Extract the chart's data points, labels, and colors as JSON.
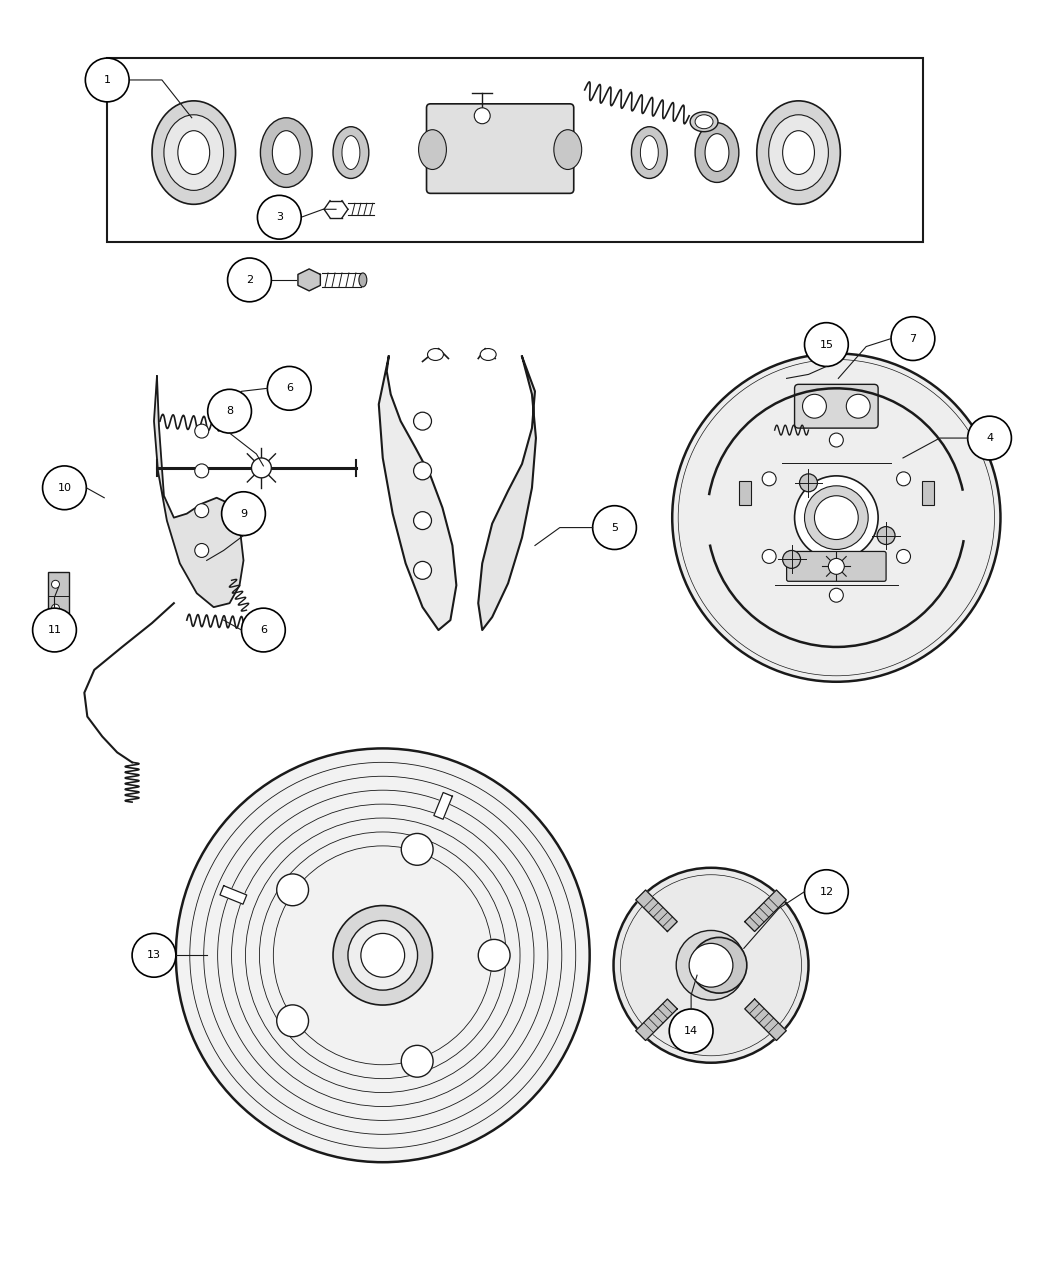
{
  "bg_color": "#ffffff",
  "line_color": "#1a1a1a",
  "callout_color": "#000000",
  "fig_width": 10.5,
  "fig_height": 12.75
}
